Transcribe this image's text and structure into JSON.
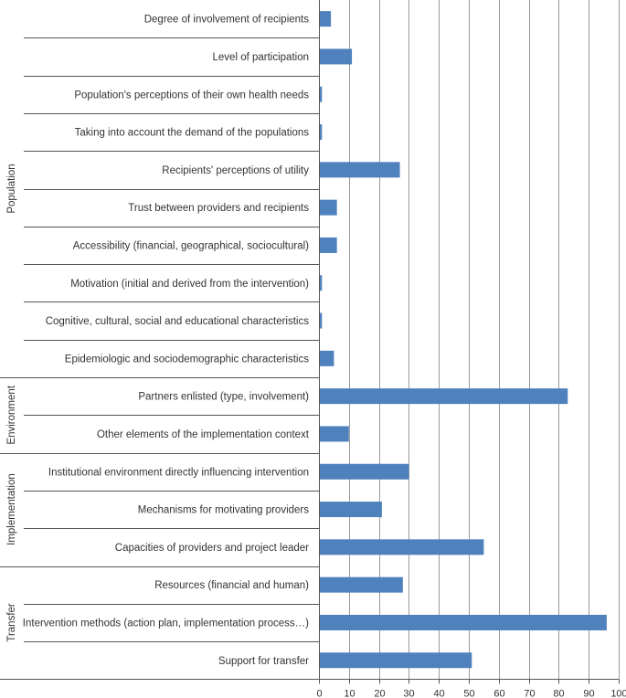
{
  "chart_data": {
    "type": "bar",
    "orientation": "horizontal",
    "title": "",
    "xlabel": "",
    "ylabel": "",
    "xlim": [
      0,
      100
    ],
    "xticks": [
      0,
      10,
      20,
      30,
      40,
      50,
      60,
      70,
      80,
      90,
      100
    ],
    "grid": "vertical",
    "legend": "none",
    "bar_color": "#4F81BD",
    "groups": [
      {
        "name": "Population",
        "categories": [
          "Degree of involvement of recipients",
          "Level of participation",
          "Population's perceptions of their own health needs",
          "Taking into account the demand of the populations",
          "Recipients' perceptions of utility",
          "Trust between providers and recipients",
          "Accessibility (financial, geographical, sociocultural)",
          "Motivation (initial and derived from the intervention)",
          "Cognitive, cultural, social and educational characteristics",
          "Epidemiologic and sociodemographic characteristics"
        ],
        "values": [
          4,
          11,
          1,
          1,
          27,
          6,
          6,
          1,
          1,
          5
        ]
      },
      {
        "name": "Environment",
        "categories": [
          "Partners enlisted (type, involvement)",
          "Other elements of the implementation context"
        ],
        "values": [
          83,
          10
        ]
      },
      {
        "name": "Implementation",
        "categories": [
          "Institutional environment directly influencing intervention",
          "Mechanisms for motivating providers",
          "Capacities of providers and project leader"
        ],
        "values": [
          30,
          21,
          55
        ]
      },
      {
        "name": "Transfer",
        "categories": [
          "Resources (financial and human)",
          "Intervention methods (action plan, implementation process…)",
          "Support for transfer"
        ],
        "values": [
          28,
          96,
          51
        ]
      }
    ]
  }
}
